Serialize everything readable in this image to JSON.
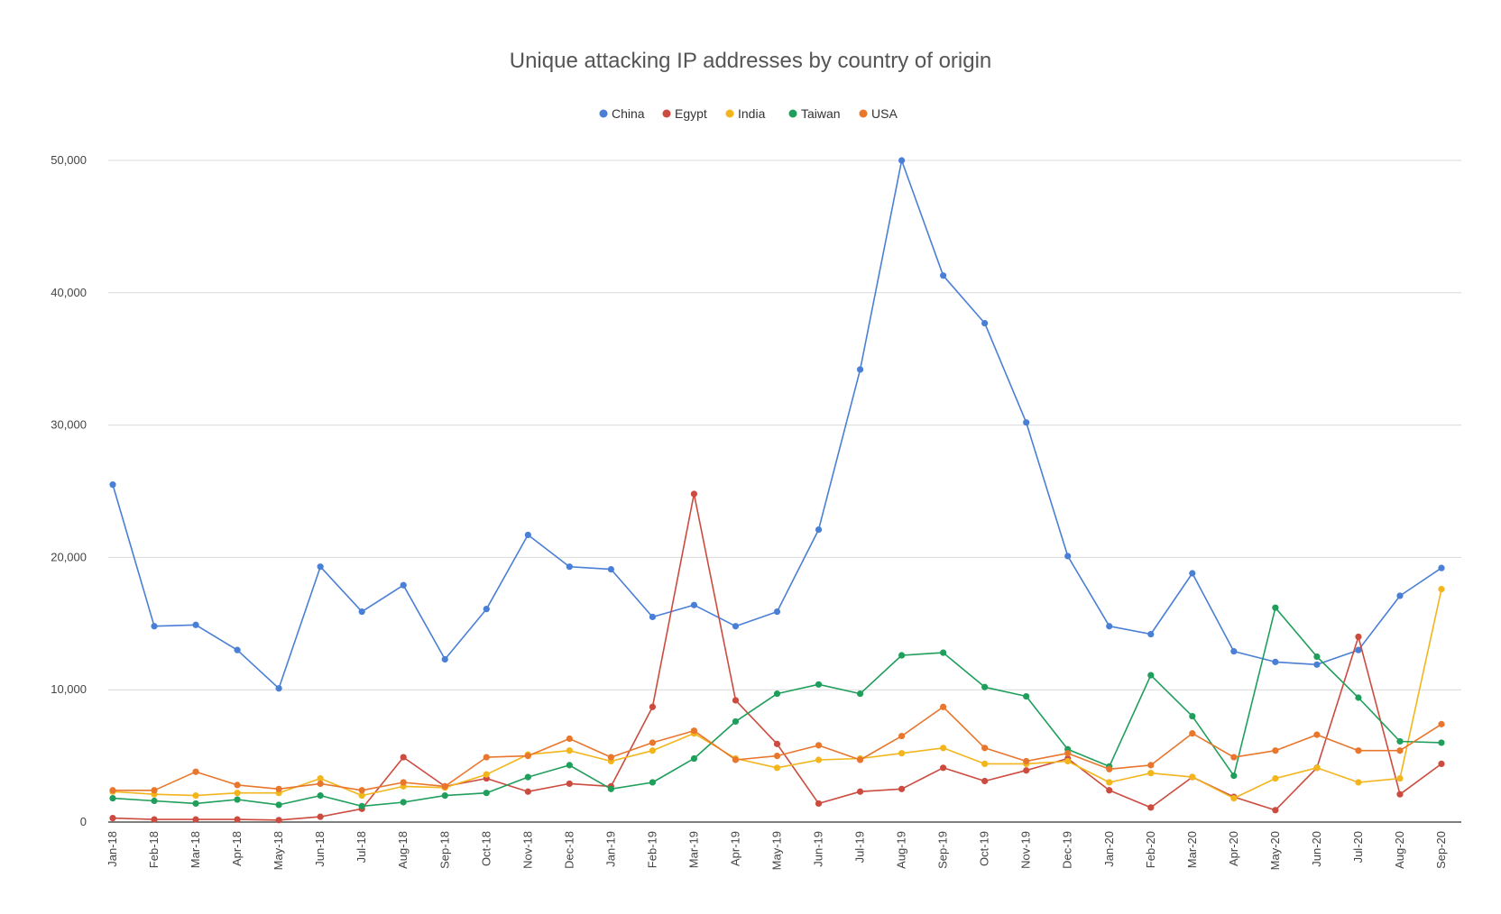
{
  "chart_data": {
    "type": "line",
    "title": "Unique attacking IP addresses by country of origin",
    "xlabel": "",
    "ylabel": "",
    "legend_position": "top-center",
    "grid": true,
    "ylim": [
      0,
      50000
    ],
    "yticks": [
      0,
      10000,
      20000,
      30000,
      40000,
      50000
    ],
    "ytick_labels": [
      "0",
      "10,000",
      "20,000",
      "30,000",
      "40,000",
      "50,000"
    ],
    "categories": [
      "Jan-18",
      "Feb-18",
      "Mar-18",
      "Apr-18",
      "May-18",
      "Jun-18",
      "Jul-18",
      "Aug-18",
      "Sep-18",
      "Oct-18",
      "Nov-18",
      "Dec-18",
      "Jan-19",
      "Feb-19",
      "Mar-19",
      "Apr-19",
      "May-19",
      "Jun-19",
      "Jul-19",
      "Aug-19",
      "Sep-19",
      "Oct-19",
      "Nov-19",
      "Dec-19",
      "Jan-20",
      "Feb-20",
      "Mar-20",
      "Apr-20",
      "May-20",
      "Jun-20",
      "Jul-20",
      "Aug-20",
      "Sep-20"
    ],
    "series": [
      {
        "name": "China",
        "color": "#4a7fd6",
        "values": [
          25500,
          14800,
          14900,
          13000,
          10100,
          19300,
          15900,
          17900,
          12300,
          16100,
          21700,
          19300,
          19100,
          15500,
          16400,
          14800,
          15900,
          22100,
          34200,
          50000,
          41300,
          37700,
          30200,
          20100,
          14800,
          14200,
          18800,
          12900,
          12100,
          11900,
          13000,
          17100,
          19200
        ]
      },
      {
        "name": "Egypt",
        "color": "#cc4b3f",
        "values": [
          300,
          200,
          200,
          200,
          150,
          400,
          1000,
          4900,
          2700,
          3300,
          2300,
          2900,
          2700,
          8700,
          24800,
          9200,
          5900,
          1400,
          2300,
          2500,
          4100,
          3100,
          3900,
          4800,
          2400,
          1100,
          3400,
          1900,
          900,
          4100,
          14000,
          2100,
          4400
        ]
      },
      {
        "name": "India",
        "color": "#f2b51c",
        "values": [
          2300,
          2100,
          2000,
          2200,
          2200,
          3300,
          2000,
          2700,
          2600,
          3600,
          5100,
          5400,
          4600,
          5400,
          6700,
          4800,
          4100,
          4700,
          4800,
          5200,
          5600,
          4400,
          4400,
          4600,
          3000,
          3700,
          3400,
          1800,
          3300,
          4100,
          3000,
          3300,
          17600
        ]
      },
      {
        "name": "Taiwan",
        "color": "#1f9e5c",
        "values": [
          1800,
          1600,
          1400,
          1700,
          1300,
          2000,
          1200,
          1500,
          2000,
          2200,
          3400,
          4300,
          2500,
          3000,
          4800,
          7600,
          9700,
          10400,
          9700,
          12600,
          12800,
          10200,
          9500,
          5500,
          4200,
          11100,
          8000,
          3500,
          16200,
          12500,
          9400,
          6100,
          6000
        ]
      },
      {
        "name": "USA",
        "color": "#e8762c",
        "values": [
          2400,
          2400,
          3800,
          2800,
          2500,
          2900,
          2400,
          3000,
          2700,
          4900,
          5000,
          6300,
          4900,
          6000,
          6900,
          4700,
          5000,
          5800,
          4700,
          6500,
          8700,
          5600,
          4600,
          5200,
          4000,
          4300,
          6700,
          4900,
          5400,
          6600,
          5400,
          5400,
          7400
        ]
      }
    ]
  }
}
